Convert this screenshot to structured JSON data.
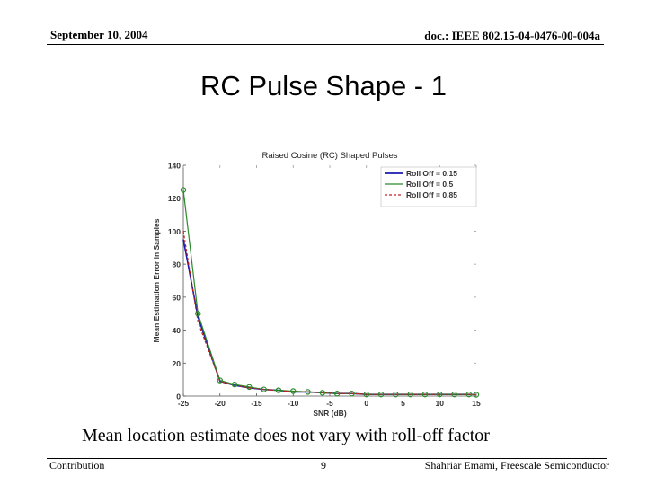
{
  "header": {
    "date": "September 10, 2004",
    "doc": "doc.: IEEE 802.15-04-0476-00-004a"
  },
  "slide": {
    "title": "RC Pulse Shape - 1",
    "caption": "Mean location estimate does not vary with roll-off factor"
  },
  "footer": {
    "left": "Contribution",
    "page": "9",
    "author": "Shahriar Emami, Freescale Semiconductor"
  },
  "chart_data": {
    "type": "line",
    "title": "Raised Cosine (RC) Shaped Pulses",
    "xlabel": "SNR (dB)",
    "ylabel": "Mean Estimation Error in Samples",
    "xlim": [
      -25,
      15
    ],
    "ylim": [
      0,
      140
    ],
    "xticks": [
      "-25",
      "-20",
      "-15",
      "-10",
      "-5",
      "0",
      "5",
      "10",
      "15"
    ],
    "yticks": [
      "0",
      "20",
      "40",
      "60",
      "80",
      "100",
      "120",
      "140"
    ],
    "legend_position": "top-right",
    "x": [
      -25,
      -23,
      -20,
      -18,
      -16,
      -14,
      -12,
      -10,
      -8,
      -6,
      -4,
      -2,
      0,
      2,
      4,
      6,
      8,
      10,
      12,
      14,
      15
    ],
    "series": [
      {
        "name": "Roll Off = 0.15",
        "color": "#1a1ab0",
        "dash": "solid",
        "values": [
          95,
          48,
          9,
          6.5,
          5,
          4,
          3.5,
          2.5,
          2.5,
          2,
          1.5,
          1.5,
          1,
          1,
          1,
          1,
          1,
          1,
          1,
          1,
          0.8
        ]
      },
      {
        "name": "Roll Off = 0.5",
        "color": "#2a8a2a",
        "dash": "solid",
        "values": [
          125,
          50,
          9.5,
          7,
          5.5,
          4,
          3.5,
          3,
          2.5,
          2,
          1.5,
          1.5,
          1,
          1,
          1,
          1,
          1,
          1,
          1,
          1,
          0.8
        ]
      },
      {
        "name": "Roll Off = 0.85",
        "color": "#c02020",
        "dash": "dashed",
        "values": [
          100,
          45,
          9,
          6.5,
          5,
          4,
          3.5,
          2.5,
          2.5,
          2,
          1.5,
          1.5,
          1,
          1,
          1,
          1,
          1,
          1,
          1,
          1,
          0.8
        ]
      }
    ],
    "marker_series": {
      "name": "Roll Off = 0.5",
      "color": "#2a8a2a",
      "x": [
        -25,
        -23,
        -20,
        -18,
        -16,
        -14,
        -12,
        -10,
        -8,
        -6,
        -4,
        -2,
        0,
        2,
        4,
        6,
        8,
        10,
        12,
        14,
        15
      ],
      "values": [
        125,
        50,
        9.5,
        7,
        5.5,
        4,
        3.5,
        3,
        2.5,
        2,
        1.5,
        1.5,
        1,
        1,
        1,
        1,
        1,
        1,
        1,
        1,
        0.8
      ]
    }
  }
}
